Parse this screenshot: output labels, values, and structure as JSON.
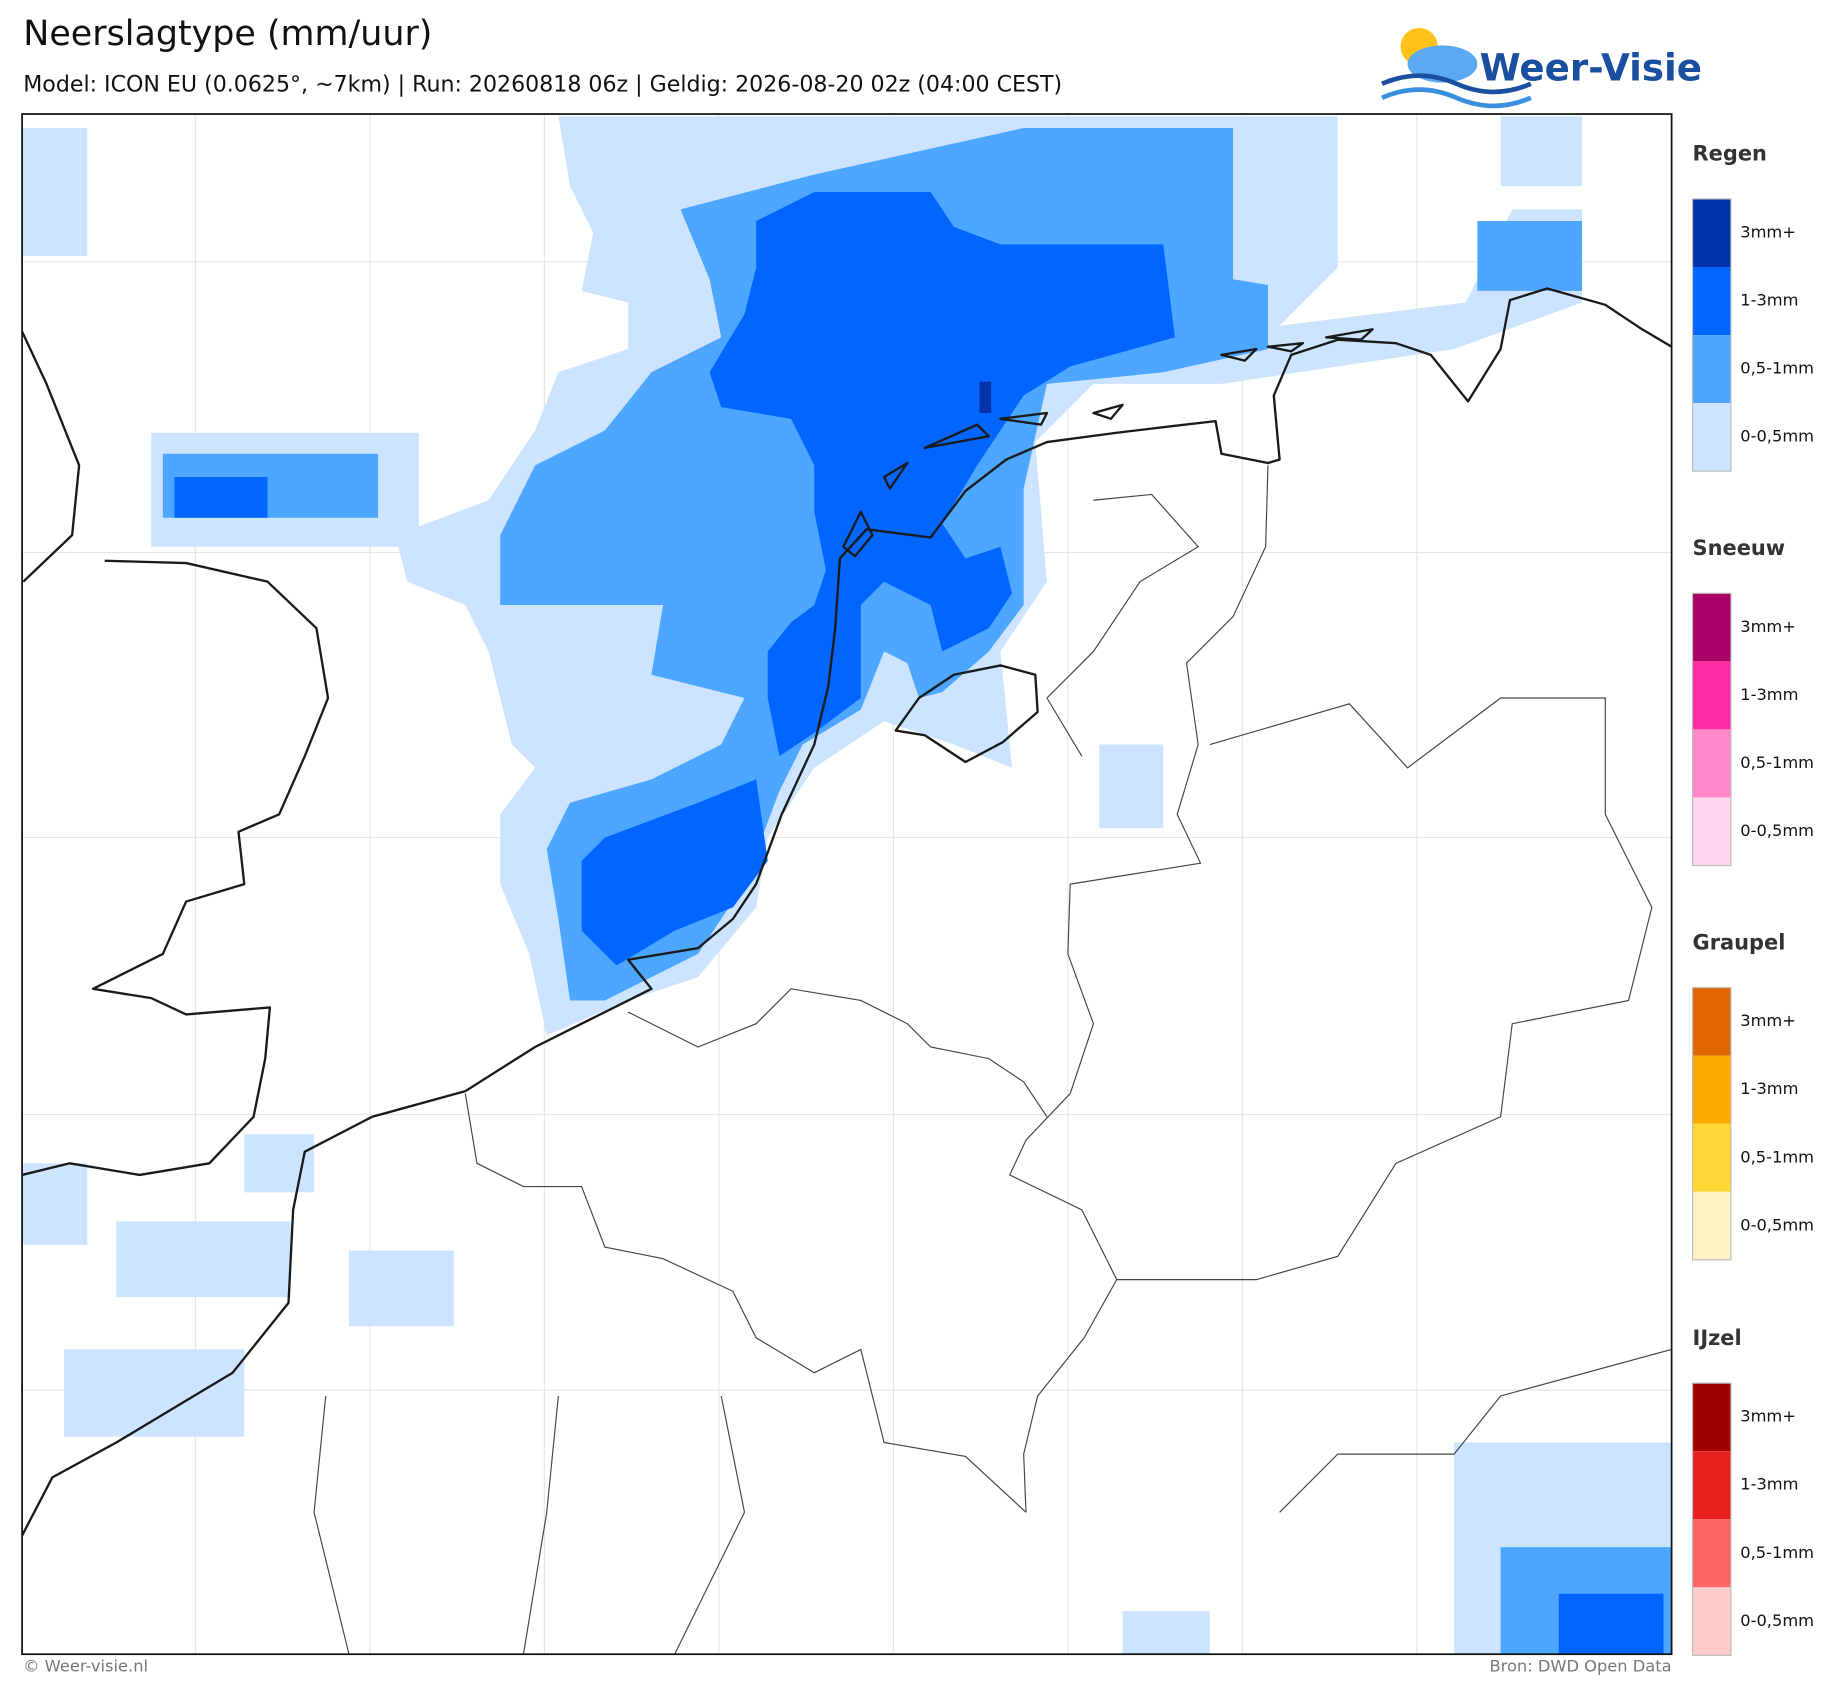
{
  "header": {
    "title": "Neerslagtype (mm/uur)",
    "subtitle": "Model: ICON EU (0.0625°, ~7km)  |  Run: 20260818 06z  |  Geldig: 2026-08-20 02z (04:00 CEST)",
    "logo": "Weer-Visie"
  },
  "legend": [
    {
      "name": "Regen",
      "items": [
        {
          "label": "3mm+",
          "color": "#0033aa"
        },
        {
          "label": "1-3mm",
          "color": "#0066ff"
        },
        {
          "label": "0,5-1mm",
          "color": "#4da6ff"
        },
        {
          "label": "0-0,5mm",
          "color": "#cce4ff"
        }
      ]
    },
    {
      "name": "Sneeuw",
      "items": [
        {
          "label": "3mm+",
          "color": "#aa0066"
        },
        {
          "label": "1-3mm",
          "color": "#ff2aa6"
        },
        {
          "label": "0,5-1mm",
          "color": "#ff88cc"
        },
        {
          "label": "0-0,5mm",
          "color": "#ffd6ec"
        }
      ]
    },
    {
      "name": "Graupel",
      "items": [
        {
          "label": "3mm+",
          "color": "#e06600"
        },
        {
          "label": "1-3mm",
          "color": "#ffaa00"
        },
        {
          "label": "0,5-1mm",
          "color": "#ffd633"
        },
        {
          "label": "0-0,5mm",
          "color": "#fff2c6"
        }
      ]
    },
    {
      "name": "IJzel",
      "items": [
        {
          "label": "3mm+",
          "color": "#a00000"
        },
        {
          "label": "1-3mm",
          "color": "#e82020"
        },
        {
          "label": "0,5-1mm",
          "color": "#ff6666"
        },
        {
          "label": "0-0,5mm",
          "color": "#ffcccc"
        }
      ]
    }
  ],
  "footer": {
    "left": "© Weer-visie.nl",
    "right": "Bron: DWD Open Data"
  }
}
